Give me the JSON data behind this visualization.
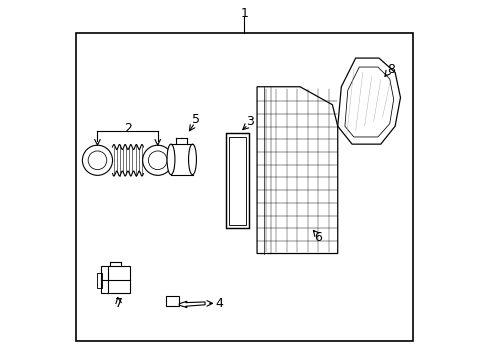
{
  "background_color": "#ffffff",
  "border_color": "#000000",
  "line_color": "#000000",
  "label_color": "#000000",
  "fig_width": 4.89,
  "fig_height": 3.6,
  "dpi": 100
}
